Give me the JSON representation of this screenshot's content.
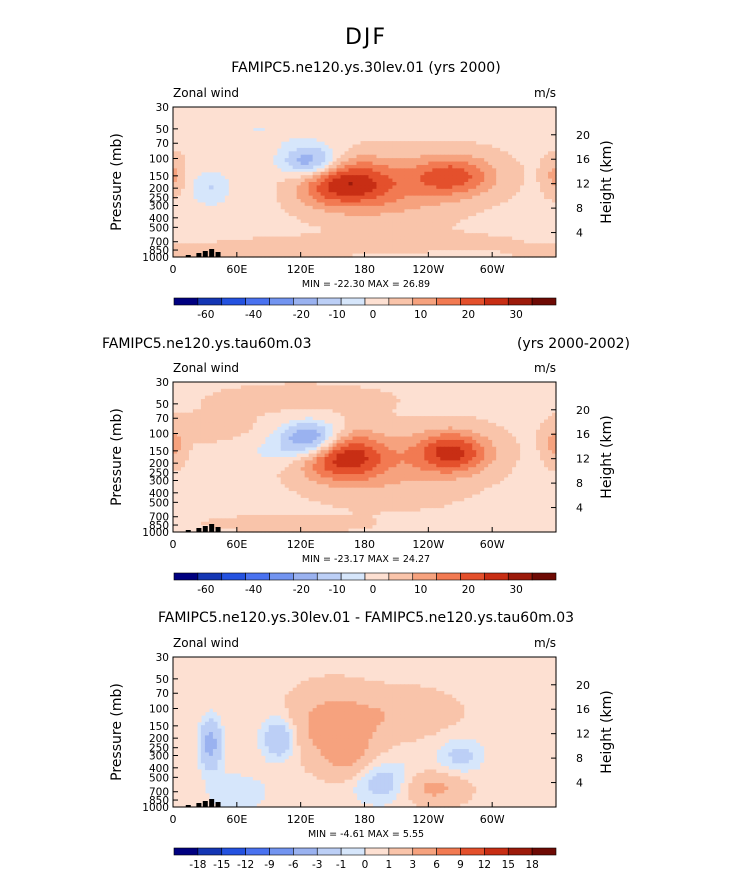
{
  "figure": {
    "title": "DJF",
    "colors": {
      "panel_bg": "#d6e6fb",
      "terrain": "#000000"
    }
  },
  "scales": {
    "abs": {
      "labels": [
        "-60",
        "-40",
        "-20",
        "-10",
        "0",
        "10",
        "20",
        "30"
      ],
      "colors": [
        "#000080",
        "#1436b4",
        "#2452e0",
        "#4a72f0",
        "#7294f0",
        "#9ab2f0",
        "#bccff6",
        "#d6e6fb",
        "#fde0d2",
        "#f9c4aa",
        "#f6a27e",
        "#f27a52",
        "#e4502c",
        "#c82e14",
        "#9c1a0a",
        "#6e0a04"
      ]
    },
    "diff": {
      "labels": [
        "-18",
        "-15",
        "-12",
        "-9",
        "-6",
        "-3",
        "-1",
        "0",
        "1",
        "3",
        "6",
        "9",
        "12",
        "15",
        "18"
      ],
      "colors": [
        "#000080",
        "#1436b4",
        "#2452e0",
        "#4a72f0",
        "#7294f0",
        "#9ab2f0",
        "#bccff6",
        "#d6e6fb",
        "#fde0d2",
        "#f9c4aa",
        "#f6a27e",
        "#f27a52",
        "#e4502c",
        "#c82e14",
        "#9c1a0a",
        "#6e0a04"
      ]
    }
  },
  "chart_data": [
    {
      "type": "heatmap",
      "title": "FAMIPC5.ne120.ys.30lev.01 (yrs 2000)",
      "subtitle_right": "",
      "left_label": "Zonal wind",
      "units": "m/s",
      "ylabel": "Pressure (mb)",
      "ylabel_right": "Height (km)",
      "scale": "abs",
      "x_ticks": [
        "0",
        "60E",
        "120E",
        "180",
        "120W",
        "60W"
      ],
      "y_ticks": [
        "30",
        "50",
        "70",
        "100",
        "150",
        "200",
        "250",
        "300",
        "400",
        "500",
        "700",
        "850",
        "1000"
      ],
      "height_ticks": [
        "20",
        "16",
        "12",
        "8",
        "4"
      ],
      "stats": {
        "min_label": "MIN =",
        "min": "-22.30",
        "max_label": "MAX =",
        "max": "26.89"
      },
      "features": [
        {
          "lon": 155,
          "p": 175,
          "amp": 26.9,
          "wl": 35,
          "wp": 0.4
        },
        {
          "lon": 263,
          "p": 150,
          "amp": 18.0,
          "wl": 28,
          "wp": 0.34
        },
        {
          "lon": 210,
          "p": 230,
          "amp": 6.0,
          "wl": 40,
          "wp": 0.5
        },
        {
          "lon": 220,
          "p": 700,
          "amp": 3.0,
          "wl": 70,
          "wp": 0.15
        },
        {
          "lon": 130,
          "p": 110,
          "amp": -22.3,
          "wl": 20,
          "wp": 0.28
        },
        {
          "lon": 115,
          "p": 180,
          "amp": -6.0,
          "wl": 30,
          "wp": 0.4
        },
        {
          "lon": 35,
          "p": 200,
          "amp": -9.0,
          "wl": 14,
          "wp": 0.3
        },
        {
          "lon": 80,
          "p": 50,
          "amp": -4.0,
          "wl": 50,
          "wp": 0.3
        },
        {
          "lon": 110,
          "p": 800,
          "amp": 5.0,
          "wl": 45,
          "wp": 0.12
        },
        {
          "lon": 0,
          "p": 150,
          "amp": 8.0,
          "wl": 8,
          "wp": 0.3
        },
        {
          "lon": 0,
          "p": 900,
          "amp": 3.0,
          "wl": 30,
          "wp": 0.1
        }
      ],
      "base": -1.0
    },
    {
      "type": "heatmap",
      "title": "FAMIPC5.ne120.ys.tau60m.03",
      "subtitle_right": "(yrs 2000-2002)",
      "left_label": "Zonal wind",
      "units": "m/s",
      "ylabel": "Pressure (mb)",
      "ylabel_right": "Height (km)",
      "scale": "abs",
      "x_ticks": [
        "0",
        "60E",
        "120E",
        "180",
        "120W",
        "60W"
      ],
      "y_ticks": [
        "30",
        "50",
        "70",
        "100",
        "150",
        "200",
        "250",
        "300",
        "400",
        "500",
        "700",
        "850",
        "1000"
      ],
      "height_ticks": [
        "20",
        "16",
        "12",
        "8",
        "4"
      ],
      "stats": {
        "min_label": "MIN =",
        "min": "-23.17",
        "max_label": "MAX =",
        "max": "24.27"
      },
      "features": [
        {
          "lon": 160,
          "p": 170,
          "amp": 24.3,
          "wl": 28,
          "wp": 0.4
        },
        {
          "lon": 262,
          "p": 155,
          "amp": 22.0,
          "wl": 25,
          "wp": 0.34
        },
        {
          "lon": 210,
          "p": 240,
          "amp": 5.0,
          "wl": 45,
          "wp": 0.55
        },
        {
          "lon": 130,
          "p": 110,
          "amp": -23.2,
          "wl": 20,
          "wp": 0.28
        },
        {
          "lon": 105,
          "p": 150,
          "amp": -6.0,
          "wl": 30,
          "wp": 0.25
        },
        {
          "lon": 40,
          "p": 90,
          "amp": 3.0,
          "wl": 30,
          "wp": 0.25
        },
        {
          "lon": 120,
          "p": 45,
          "amp": 3.0,
          "wl": 60,
          "wp": 0.25
        },
        {
          "lon": 110,
          "p": 820,
          "amp": 4.0,
          "wl": 50,
          "wp": 0.12
        },
        {
          "lon": 0,
          "p": 130,
          "amp": 8.0,
          "wl": 8,
          "wp": 0.3
        },
        {
          "lon": 250,
          "p": 800,
          "amp": -3.0,
          "wl": 30,
          "wp": 0.12
        }
      ],
      "base": -1.0
    },
    {
      "type": "heatmap",
      "title": "FAMIPC5.ne120.ys.30lev.01 - FAMIPC5.ne120.ys.tau60m.03",
      "subtitle_right": "",
      "left_label": "Zonal wind",
      "units": "m/s",
      "ylabel": "Pressure (mb)",
      "ylabel_right": "Height (km)",
      "scale": "diff",
      "x_ticks": [
        "0",
        "60E",
        "120E",
        "180",
        "120W",
        "60W"
      ],
      "y_ticks": [
        "30",
        "50",
        "70",
        "100",
        "150",
        "200",
        "250",
        "300",
        "400",
        "500",
        "700",
        "850",
        "1000"
      ],
      "height_ticks": [
        "20",
        "16",
        "12",
        "8",
        "4"
      ],
      "stats": {
        "min_label": "MIN =",
        "min": "-4.61",
        "max_label": "MAX =",
        "max": "5.55"
      },
      "features": [
        {
          "lon": 152,
          "p": 150,
          "amp": 4.0,
          "wl": 28,
          "wp": 0.55
        },
        {
          "lon": 165,
          "p": 300,
          "amp": 2.5,
          "wl": 15,
          "wp": 0.4
        },
        {
          "lon": 220,
          "p": 110,
          "amp": 2.0,
          "wl": 30,
          "wp": 0.35
        },
        {
          "lon": 245,
          "p": 650,
          "amp": 3.0,
          "wl": 20,
          "wp": 0.25
        },
        {
          "lon": 35,
          "p": 230,
          "amp": -4.6,
          "wl": 7,
          "wp": 0.4
        },
        {
          "lon": 100,
          "p": 200,
          "amp": -3.5,
          "wl": 12,
          "wp": 0.35
        },
        {
          "lon": 195,
          "p": 550,
          "amp": -2.5,
          "wl": 20,
          "wp": 0.35
        },
        {
          "lon": 270,
          "p": 300,
          "amp": -2.0,
          "wl": 15,
          "wp": 0.3
        },
        {
          "lon": 60,
          "p": 700,
          "amp": -1.5,
          "wl": 20,
          "wp": 0.3
        }
      ],
      "base": 0.6
    }
  ]
}
